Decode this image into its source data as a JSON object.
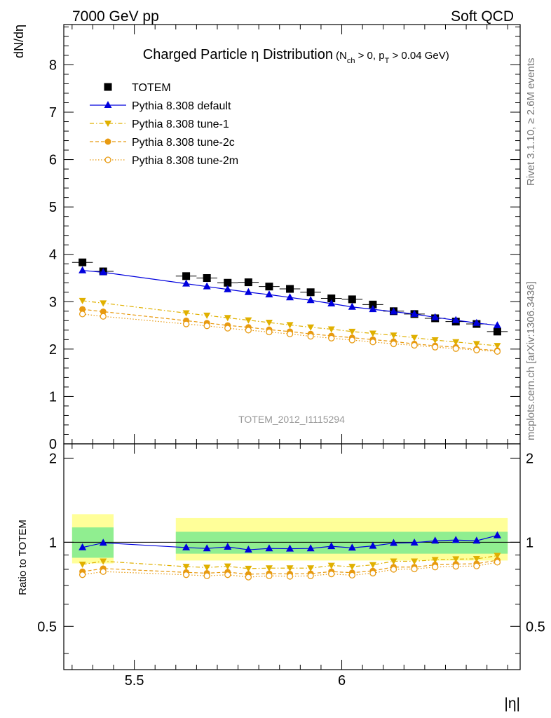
{
  "header": {
    "left": "7000 GeV pp",
    "right": "Soft QCD"
  },
  "side_labels": {
    "rivet": "Rivet 3.1.10, ≥ 2.6M events",
    "mcplots": "mcplots.cern.ch [arXiv:1306.3436]"
  },
  "chart_data": {
    "type": "scatter",
    "title": "Charged Particle η Distribution",
    "title_sub": "(N_ch > 0, p_T > 0.04 GeV)",
    "title_sub_parts": {
      "open": "(N",
      "sub1": "ch",
      "mid": " > 0, p",
      "sub2": "T",
      "close": " > 0.04 GeV)"
    },
    "watermark": "TOTEM_2012_I1115294",
    "xlabel": "|η|",
    "ylabel": "dN/dη",
    "ratio_ylabel": "Ratio to TOTEM",
    "xlim": [
      5.33,
      6.43
    ],
    "ylim": [
      0,
      8.85
    ],
    "ratio_ylim": [
      0.35,
      2.25
    ],
    "x_ticks": [
      "5.5",
      "6"
    ],
    "y_ticks": [
      "0",
      "1",
      "2",
      "3",
      "4",
      "5",
      "6",
      "7",
      "8"
    ],
    "ratio_y_ticks": [
      "0.5",
      "1",
      "2"
    ],
    "x": [
      5.375,
      5.425,
      5.625,
      5.675,
      5.725,
      5.775,
      5.825,
      5.875,
      5.925,
      5.975,
      6.025,
      6.075,
      6.125,
      6.175,
      6.225,
      6.275,
      6.325,
      6.375
    ],
    "x_halfwidth": 0.025,
    "series": [
      {
        "name": "TOTEM",
        "color": "#000000",
        "marker": "square",
        "line": "none",
        "values": [
          3.83,
          3.64,
          3.54,
          3.5,
          3.4,
          3.41,
          3.32,
          3.27,
          3.2,
          3.07,
          3.05,
          2.94,
          2.8,
          2.74,
          2.65,
          2.58,
          2.53,
          2.37
        ]
      },
      {
        "name": "Pythia 8.308 default",
        "color": "#0000dd",
        "marker": "triangle-up",
        "line": "solid",
        "values": [
          3.66,
          3.62,
          3.38,
          3.32,
          3.26,
          3.2,
          3.15,
          3.09,
          3.03,
          2.96,
          2.89,
          2.84,
          2.79,
          2.74,
          2.67,
          2.61,
          2.55,
          2.5
        ]
      },
      {
        "name": "Pythia 8.308 tune-1",
        "color": "#e0b000",
        "marker": "triangle-down",
        "line": "dashdot",
        "values": [
          3.02,
          2.97,
          2.76,
          2.71,
          2.66,
          2.61,
          2.56,
          2.51,
          2.46,
          2.42,
          2.37,
          2.33,
          2.29,
          2.24,
          2.19,
          2.15,
          2.11,
          2.07
        ]
      },
      {
        "name": "Pythia 8.308 tune-2c",
        "color": "#e89a10",
        "marker": "circle",
        "line": "dashed",
        "values": [
          2.84,
          2.79,
          2.6,
          2.55,
          2.5,
          2.46,
          2.41,
          2.37,
          2.32,
          2.28,
          2.24,
          2.2,
          2.16,
          2.11,
          2.07,
          2.04,
          2.0,
          1.97
        ]
      },
      {
        "name": "Pythia 8.308 tune-2m",
        "color": "#e89a10",
        "marker": "circle-open",
        "line": "dotted",
        "values": [
          2.74,
          2.69,
          2.53,
          2.49,
          2.44,
          2.4,
          2.36,
          2.32,
          2.27,
          2.23,
          2.19,
          2.15,
          2.11,
          2.08,
          2.04,
          2.01,
          1.98,
          1.95
        ]
      }
    ],
    "ratio_series": [
      {
        "name": "Pythia 8.308 default",
        "color": "#0000dd",
        "marker": "triangle-up",
        "line": "solid",
        "values": [
          0.958,
          0.995,
          0.957,
          0.95,
          0.962,
          0.94,
          0.95,
          0.948,
          0.95,
          0.967,
          0.955,
          0.97,
          0.993,
          0.996,
          1.012,
          1.018,
          1.012,
          1.058
        ]
      },
      {
        "name": "Pythia 8.308 tune-1",
        "color": "#e0b000",
        "marker": "triangle-down",
        "line": "dashdot",
        "values": [
          0.833,
          0.855,
          0.818,
          0.812,
          0.82,
          0.805,
          0.808,
          0.808,
          0.808,
          0.825,
          0.818,
          0.83,
          0.855,
          0.855,
          0.865,
          0.87,
          0.872,
          0.895
        ]
      },
      {
        "name": "Pythia 8.308 tune-2c",
        "color": "#e89a10",
        "marker": "circle",
        "line": "dashed",
        "values": [
          0.785,
          0.805,
          0.78,
          0.775,
          0.782,
          0.768,
          0.772,
          0.77,
          0.772,
          0.785,
          0.778,
          0.79,
          0.815,
          0.815,
          0.83,
          0.835,
          0.838,
          0.862
        ]
      },
      {
        "name": "Pythia 8.308 tune-2m",
        "color": "#e89a10",
        "marker": "circle-open",
        "line": "dotted",
        "values": [
          0.765,
          0.785,
          0.765,
          0.758,
          0.765,
          0.75,
          0.758,
          0.755,
          0.758,
          0.77,
          0.762,
          0.775,
          0.8,
          0.802,
          0.815,
          0.82,
          0.822,
          0.848
        ]
      }
    ],
    "uncertainty": {
      "segments": [
        {
          "x": [
            5.375,
            5.425
          ],
          "inner": [
            0.88,
            1.13
          ],
          "outer": [
            0.84,
            1.26
          ]
        },
        {
          "x": [
            5.625,
            6.375
          ],
          "inner": [
            0.91,
            1.09
          ],
          "outer": [
            0.86,
            1.22
          ]
        }
      ],
      "inner_color": "#90ee90",
      "outer_color": "#ffff99"
    },
    "legend": {
      "position": "top-left"
    }
  }
}
